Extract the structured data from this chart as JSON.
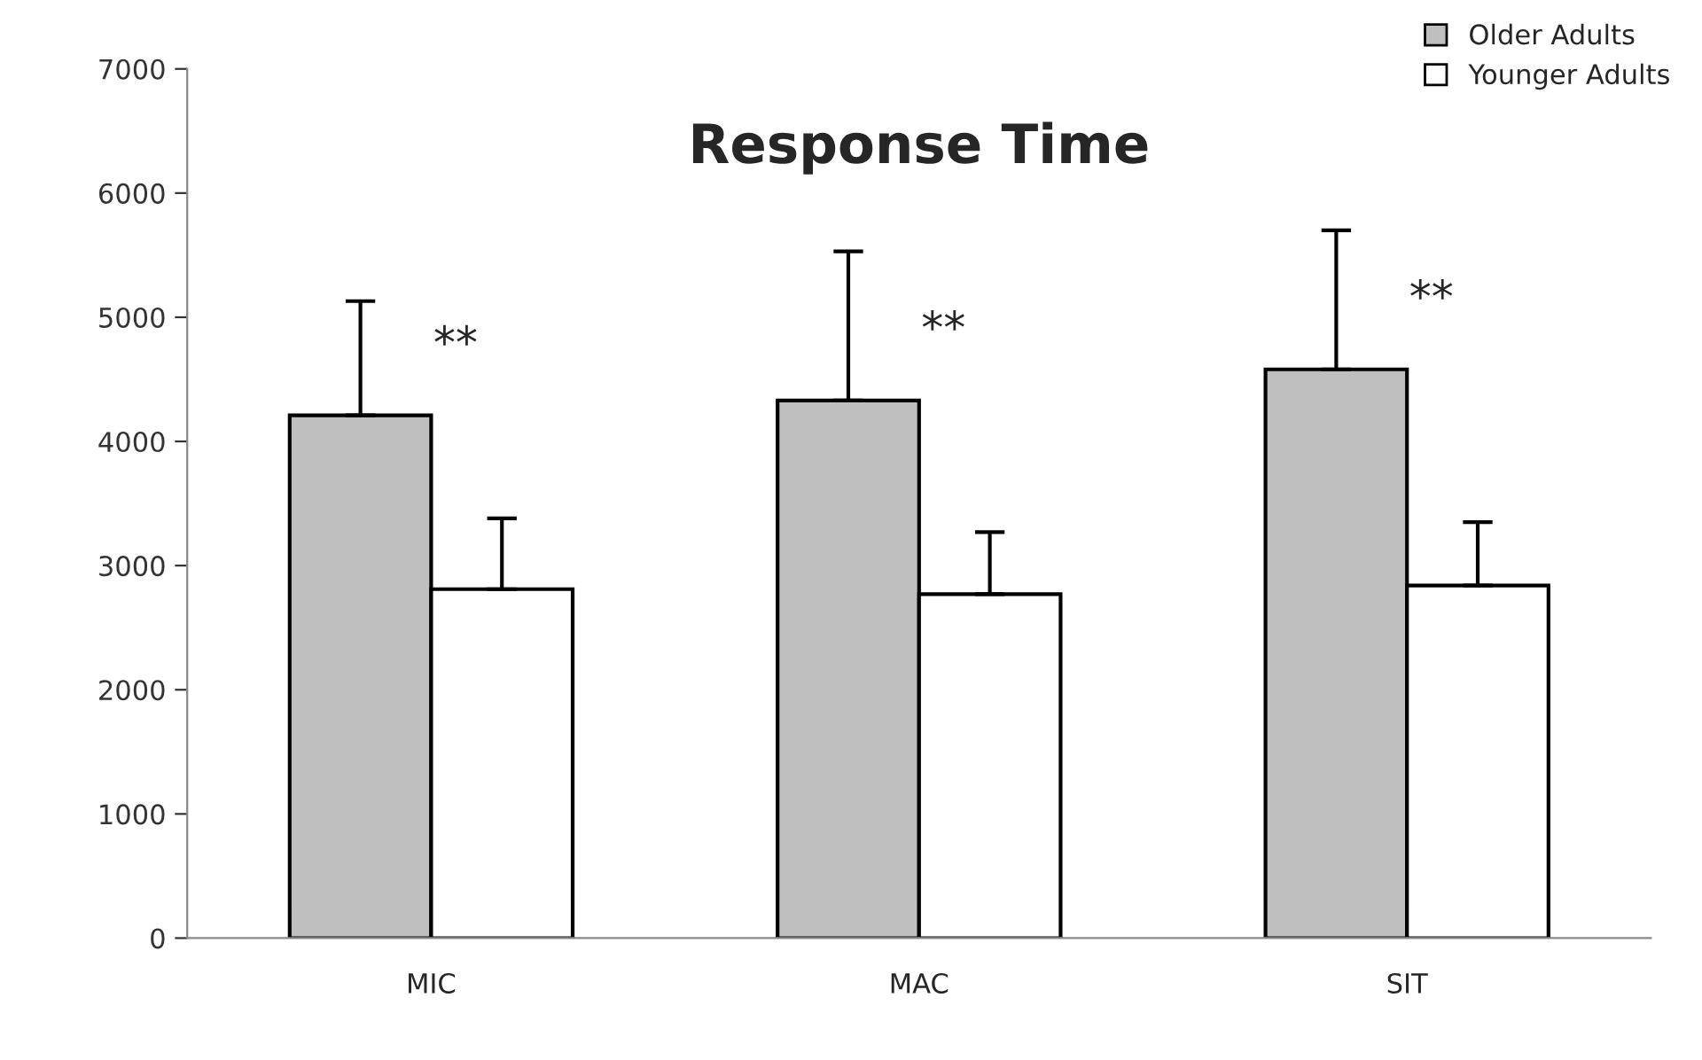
{
  "chart_data": {
    "type": "bar",
    "title": "Response Time",
    "categories": [
      "MIC",
      "MAC",
      "SIT"
    ],
    "series": [
      {
        "name": "Older Adults",
        "color": "#bfbfbf",
        "values": [
          4210,
          4330,
          4580
        ],
        "errors": [
          [
            4210,
            5130
          ],
          [
            4330,
            5530
          ],
          [
            4580,
            5700
          ]
        ]
      },
      {
        "name": "Younger Adults",
        "color": "#ffffff",
        "values": [
          2810,
          2770,
          2840
        ],
        "errors": [
          [
            2810,
            3380
          ],
          [
            2770,
            3270
          ],
          [
            2840,
            3350
          ]
        ]
      }
    ],
    "annotations": [
      "**",
      "**",
      "**"
    ],
    "ylim": [
      0,
      7000
    ],
    "yticks": [
      0,
      1000,
      2000,
      3000,
      4000,
      5000,
      6000,
      7000
    ],
    "grid": false,
    "legend": "top right"
  }
}
